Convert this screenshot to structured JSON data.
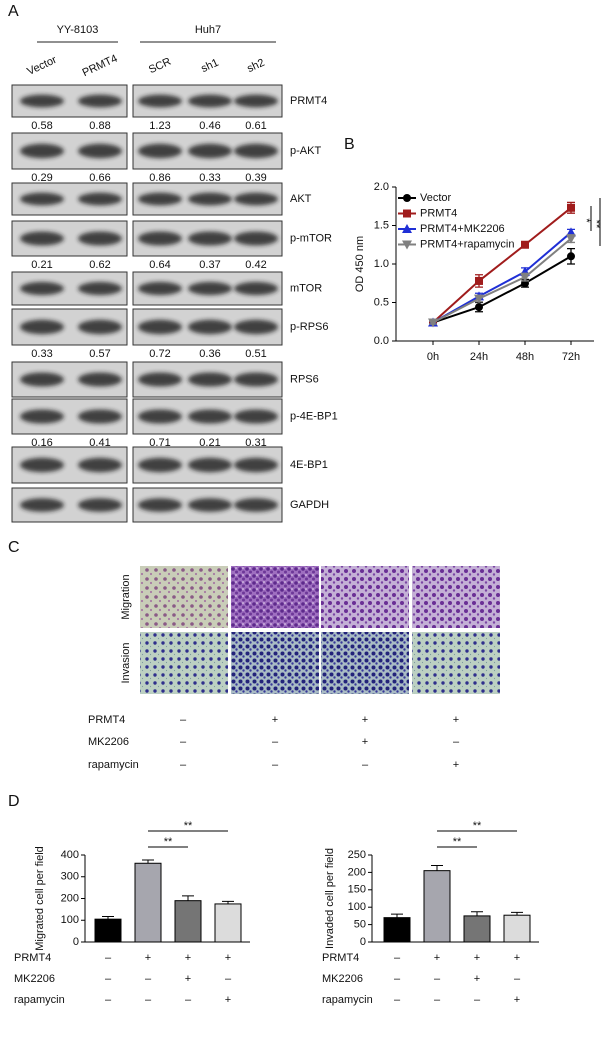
{
  "panel_a": {
    "label": "A",
    "groups": [
      {
        "label": "YY-8103",
        "lanes": [
          "Vector",
          "PRMT4"
        ]
      },
      {
        "label": "Huh7",
        "lanes": [
          "SCR",
          "sh1",
          "sh2"
        ]
      }
    ],
    "rows": [
      {
        "label": "PRMT4",
        "quant": [
          0.58,
          0.88,
          1.23,
          0.46,
          0.61
        ]
      },
      {
        "label": "p-AKT",
        "quant": [
          0.29,
          0.66,
          0.86,
          0.33,
          0.39
        ]
      },
      {
        "label": "AKT"
      },
      {
        "label": "p-mTOR",
        "quant": [
          0.21,
          0.62,
          0.64,
          0.37,
          0.42
        ]
      },
      {
        "label": "mTOR"
      },
      {
        "label": "p-RPS6",
        "quant": [
          0.33,
          0.57,
          0.72,
          0.36,
          0.51
        ]
      },
      {
        "label": "RPS6"
      },
      {
        "label": "p-4E-BP1",
        "quant": [
          0.16,
          0.41,
          0.71,
          0.21,
          0.31
        ]
      },
      {
        "label": "4E-BP1"
      },
      {
        "label": "GAPDH"
      }
    ]
  },
  "panel_b": {
    "label": "B"
  },
  "panel_c": {
    "label": "C",
    "rows": [
      "Migration",
      "Invasion"
    ],
    "conditions": [
      {
        "name": "PRMT4",
        "signs": [
          "–",
          "+",
          "+",
          "+"
        ]
      },
      {
        "name": "MK2206",
        "signs": [
          "–",
          "–",
          "+",
          "–"
        ]
      },
      {
        "name": "rapamycin",
        "signs": [
          "–",
          "–",
          "–",
          "+"
        ]
      }
    ]
  },
  "panel_d": {
    "label": "D"
  },
  "chart_data": [
    {
      "type": "line",
      "ylabel": "OD 450 nm",
      "categories": [
        "0h",
        "24h",
        "48h",
        "72h"
      ],
      "series": [
        {
          "name": "Vector",
          "color": "#000000",
          "marker": "circle",
          "values": [
            0.24,
            0.44,
            0.75,
            1.1
          ],
          "errors": [
            0.02,
            0.06,
            0.05,
            0.1
          ]
        },
        {
          "name": "PRMT4",
          "color": "#a01c1c",
          "marker": "square",
          "values": [
            0.24,
            0.78,
            1.25,
            1.73
          ],
          "errors": [
            0.02,
            0.08,
            0.04,
            0.07
          ]
        },
        {
          "name": "PRMT4+MK2206",
          "color": "#1f2fd6",
          "marker": "triangle-up",
          "values": [
            0.24,
            0.58,
            0.9,
            1.41
          ],
          "errors": [
            0.02,
            0.04,
            0.05,
            0.04
          ]
        },
        {
          "name": "PRMT4+rapamycin",
          "color": "#808080",
          "marker": "triangle-down",
          "values": [
            0.24,
            0.55,
            0.83,
            1.33
          ],
          "errors": [
            0.02,
            0.04,
            0.05,
            0.05
          ]
        }
      ],
      "ylim": [
        0,
        2
      ],
      "yticks": [
        {
          "value": 0,
          "label": "0.0"
        },
        {
          "value": 0.5,
          "label": "0.5"
        },
        {
          "value": 1,
          "label": "1.0"
        },
        {
          "value": 1.5,
          "label": "1.5"
        },
        {
          "value": 2,
          "label": "2.0"
        }
      ],
      "annotations": [
        "*",
        "**"
      ]
    },
    {
      "type": "bar",
      "ylabel": "Migrated cell per field",
      "values": [
        105,
        362,
        190,
        175
      ],
      "errors": [
        12,
        15,
        22,
        12
      ],
      "colors": [
        "#000000",
        "#a6a6ae",
        "#757575",
        "#dcdcdc"
      ],
      "ylim": [
        0,
        400
      ],
      "yticks": [
        0,
        100,
        200,
        300,
        400
      ],
      "annotations": [
        "**",
        "**"
      ],
      "conditions": [
        {
          "name": "PRMT4",
          "signs": [
            "–",
            "+",
            "+",
            "+"
          ]
        },
        {
          "name": "MK2206",
          "signs": [
            "–",
            "–",
            "+",
            "–"
          ]
        },
        {
          "name": "rapamycin",
          "signs": [
            "–",
            "–",
            "–",
            "+"
          ]
        }
      ]
    },
    {
      "type": "bar",
      "ylabel": "Invaded cell per field",
      "values": [
        70,
        205,
        75,
        77
      ],
      "errors": [
        10,
        15,
        12,
        8
      ],
      "colors": [
        "#000000",
        "#a6a6ae",
        "#757575",
        "#dcdcdc"
      ],
      "ylim": [
        0,
        250
      ],
      "yticks": [
        0,
        50,
        100,
        150,
        200,
        250
      ],
      "annotations": [
        "**",
        "**"
      ],
      "conditions": [
        {
          "name": "PRMT4",
          "signs": [
            "–",
            "+",
            "+",
            "+"
          ]
        },
        {
          "name": "MK2206",
          "signs": [
            "–",
            "–",
            "+",
            "–"
          ]
        },
        {
          "name": "rapamycin",
          "signs": [
            "–",
            "–",
            "–",
            "+"
          ]
        }
      ]
    }
  ]
}
